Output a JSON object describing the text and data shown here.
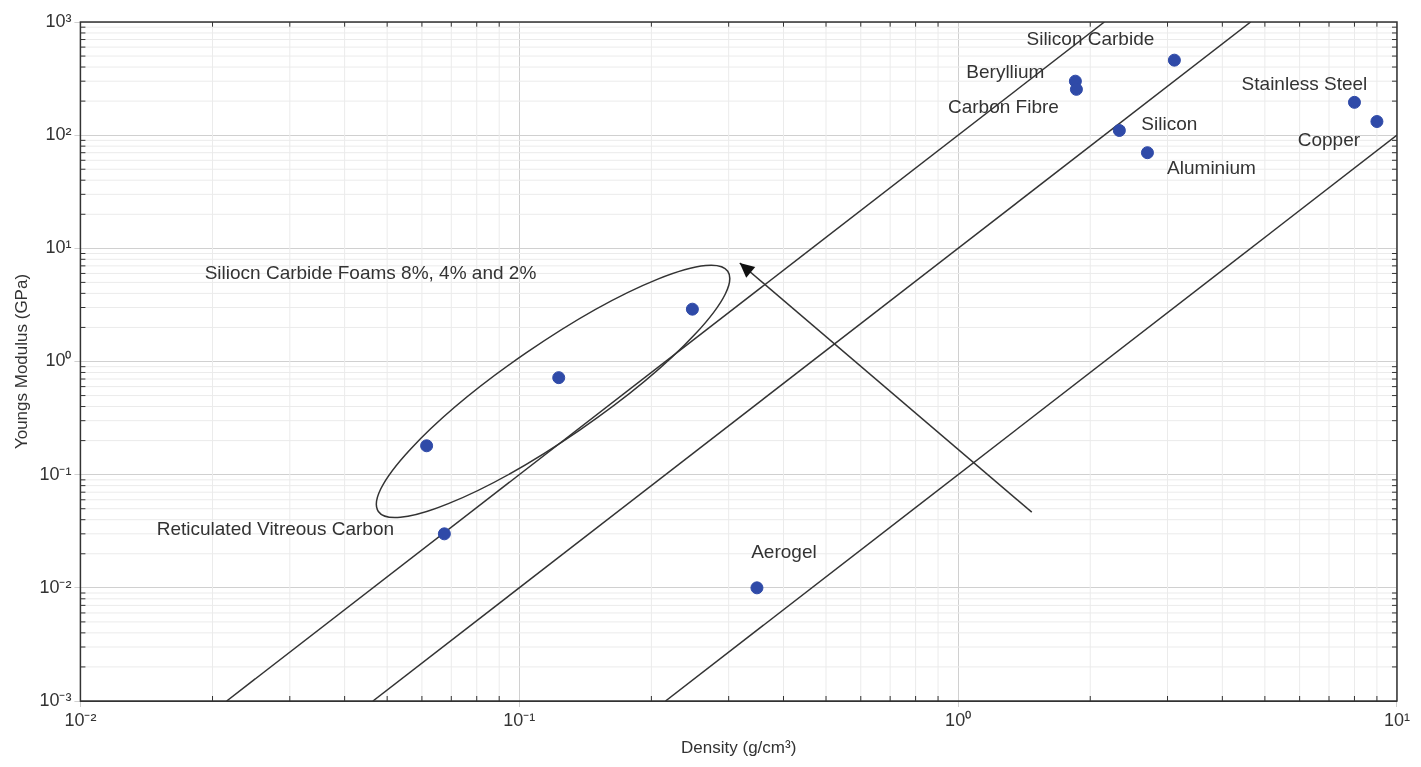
{
  "chart_data": {
    "type": "scatter",
    "xlabel": "Density (g/cm³)",
    "ylabel": "Youngs Modulus (GPa)",
    "x": [
      0.0675,
      0.0615,
      0.123,
      0.248,
      0.348,
      1.85,
      1.86,
      3.11,
      2.33,
      2.7,
      8.0,
      9.0
    ],
    "series": [
      {
        "color": "#2f4aa8",
        "values": [
          0.03,
          0.18,
          0.72,
          2.9,
          0.01,
          300,
          254,
          460,
          110,
          70,
          195,
          132
        ]
      },
      {
        "type": "line",
        "marker": "none",
        "color": "#333333",
        "x": [
          0.02154,
          2.154
        ],
        "values": [
          0.001,
          1000
        ]
      },
      {
        "type": "line",
        "marker": "none",
        "color": "#333333",
        "x": [
          0.0464,
          4.64
        ],
        "values": [
          0.001,
          1000
        ]
      },
      {
        "type": "line",
        "marker": "none",
        "color": "#333333",
        "x": [
          0.2154,
          10
        ],
        "values": [
          0.001,
          100
        ]
      }
    ],
    "annotations": [
      "Siliocn Carbide Foams 8%, 4% and 2%",
      {
        "text": "Reticulated Vitreous Carbon",
        "x": 0.0675,
        "y": 0.03
      },
      {
        "text": "Aerogel",
        "x": 0.348,
        "y": 0.01
      },
      {
        "text": "Silicon Carbide",
        "x": 3.11,
        "y": 460
      },
      {
        "text": "Beryllium",
        "x": 1.85,
        "y": 300
      },
      {
        "text": "Carbon Fibre",
        "x": 1.86,
        "y": 254
      },
      {
        "text": "Silicon",
        "x": 2.33,
        "y": 110
      },
      {
        "text": "Aluminium",
        "x": 2.7,
        "y": 70
      },
      {
        "text": "Stainless Steel",
        "x": 8.0,
        "y": 195
      },
      {
        "text": "Copper",
        "x": 9.0,
        "y": 132
      }
    ],
    "log": "xy",
    "xlim": [
      0.01,
      10
    ],
    "ylim": [
      0.001,
      1000
    ],
    "xticks": [
      {
        "value": 0.01,
        "label": "10⁻²"
      },
      {
        "value": 0.1,
        "label": "10⁻¹"
      },
      {
        "value": 1,
        "label": "10⁰"
      },
      {
        "value": 10,
        "label": "10¹"
      }
    ],
    "yticks": [
      {
        "value": 0.001,
        "label": "10⁻³"
      },
      {
        "value": 0.01,
        "label": "10⁻²"
      },
      {
        "value": 0.1,
        "label": "10⁻¹"
      },
      {
        "value": 1,
        "label": "10⁰"
      },
      {
        "value": 10,
        "label": "10¹"
      },
      {
        "value": 100,
        "label": "10²"
      },
      {
        "value": 1000,
        "label": "10³"
      }
    ],
    "grid": true,
    "legend": false,
    "marker": "circle",
    "line_style": "solid"
  }
}
